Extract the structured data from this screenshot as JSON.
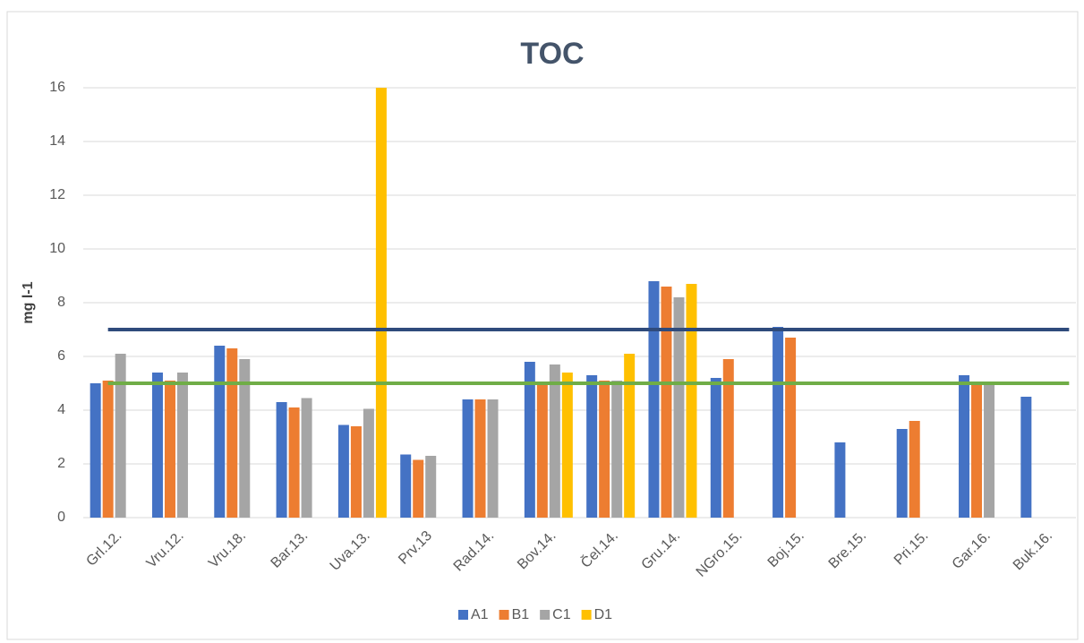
{
  "chart_data": {
    "type": "bar",
    "title": "TOC",
    "y_label": "mg l-1",
    "categories": [
      "Grl.12.",
      "Vru.12.",
      "Vru.18.",
      "Bar.13.",
      "Uva.13.",
      "Prv.13",
      "Rad.14.",
      "Bov.14.",
      "Čel.14.",
      "Gru.14.",
      "NGro.15.",
      "Boj.15.",
      "Bre.15.",
      "Pri.15.",
      "Gar.16.",
      "Buk.16."
    ],
    "series": [
      {
        "name": "A1",
        "color": "#4472c4",
        "values": [
          5.0,
          5.4,
          6.4,
          4.3,
          3.45,
          2.35,
          4.4,
          5.8,
          5.3,
          8.8,
          5.2,
          7.1,
          2.8,
          3.3,
          5.3,
          4.5
        ]
      },
      {
        "name": "B1",
        "color": "#ed7d31",
        "values": [
          5.1,
          5.1,
          6.3,
          4.1,
          3.4,
          2.15,
          4.4,
          5.05,
          5.1,
          8.6,
          5.9,
          6.7,
          null,
          3.6,
          5.0,
          null
        ]
      },
      {
        "name": "C1",
        "color": "#a5a5a5",
        "values": [
          6.1,
          5.4,
          5.9,
          4.45,
          4.05,
          2.3,
          4.4,
          5.7,
          5.1,
          8.2,
          null,
          null,
          null,
          null,
          5.0,
          null
        ]
      },
      {
        "name": "D1",
        "color": "#ffc000",
        "values": [
          null,
          null,
          null,
          null,
          16,
          null,
          null,
          5.4,
          6.1,
          8.7,
          null,
          null,
          null,
          null,
          null,
          null
        ]
      }
    ],
    "reference_lines": [
      {
        "value": 7,
        "color": "#2f4b7c"
      },
      {
        "value": 5,
        "color": "#70ad47"
      }
    ],
    "ylim": [
      0,
      16
    ],
    "yticks": [
      0,
      2,
      4,
      6,
      8,
      10,
      12,
      14,
      16
    ],
    "grid": true,
    "legend": "bottom"
  }
}
